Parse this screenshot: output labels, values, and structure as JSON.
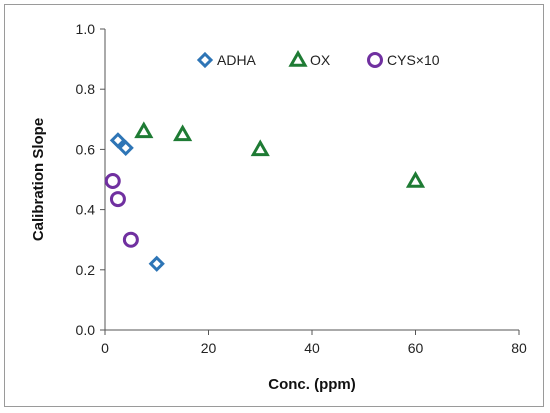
{
  "chart_data": {
    "type": "scatter",
    "title": "",
    "xlabel": "Conc. (ppm)",
    "ylabel": "Calibration Slope",
    "xlim": [
      0,
      80
    ],
    "ylim": [
      0,
      1.0
    ],
    "xticks": [
      "0",
      "20",
      "40",
      "60",
      "80"
    ],
    "yticks": [
      "0.0",
      "0.2",
      "0.4",
      "0.6",
      "0.8",
      "1.0"
    ],
    "grid": false,
    "legend_position": "top",
    "series": [
      {
        "name": "ADHA",
        "marker": "diamond",
        "color": "#2e75b6",
        "x": [
          2.5,
          4.0,
          10.0
        ],
        "y": [
          0.63,
          0.605,
          0.22
        ]
      },
      {
        "name": "OX",
        "marker": "triangle",
        "color": "#1e7b34",
        "x": [
          7.5,
          15.0,
          30.0,
          60.0
        ],
        "y": [
          0.66,
          0.65,
          0.6,
          0.495
        ]
      },
      {
        "name": "CYS×10",
        "marker": "circle",
        "color": "#7030a0",
        "x": [
          1.5,
          2.5,
          5.0
        ],
        "y": [
          0.495,
          0.435,
          0.3
        ]
      }
    ]
  }
}
